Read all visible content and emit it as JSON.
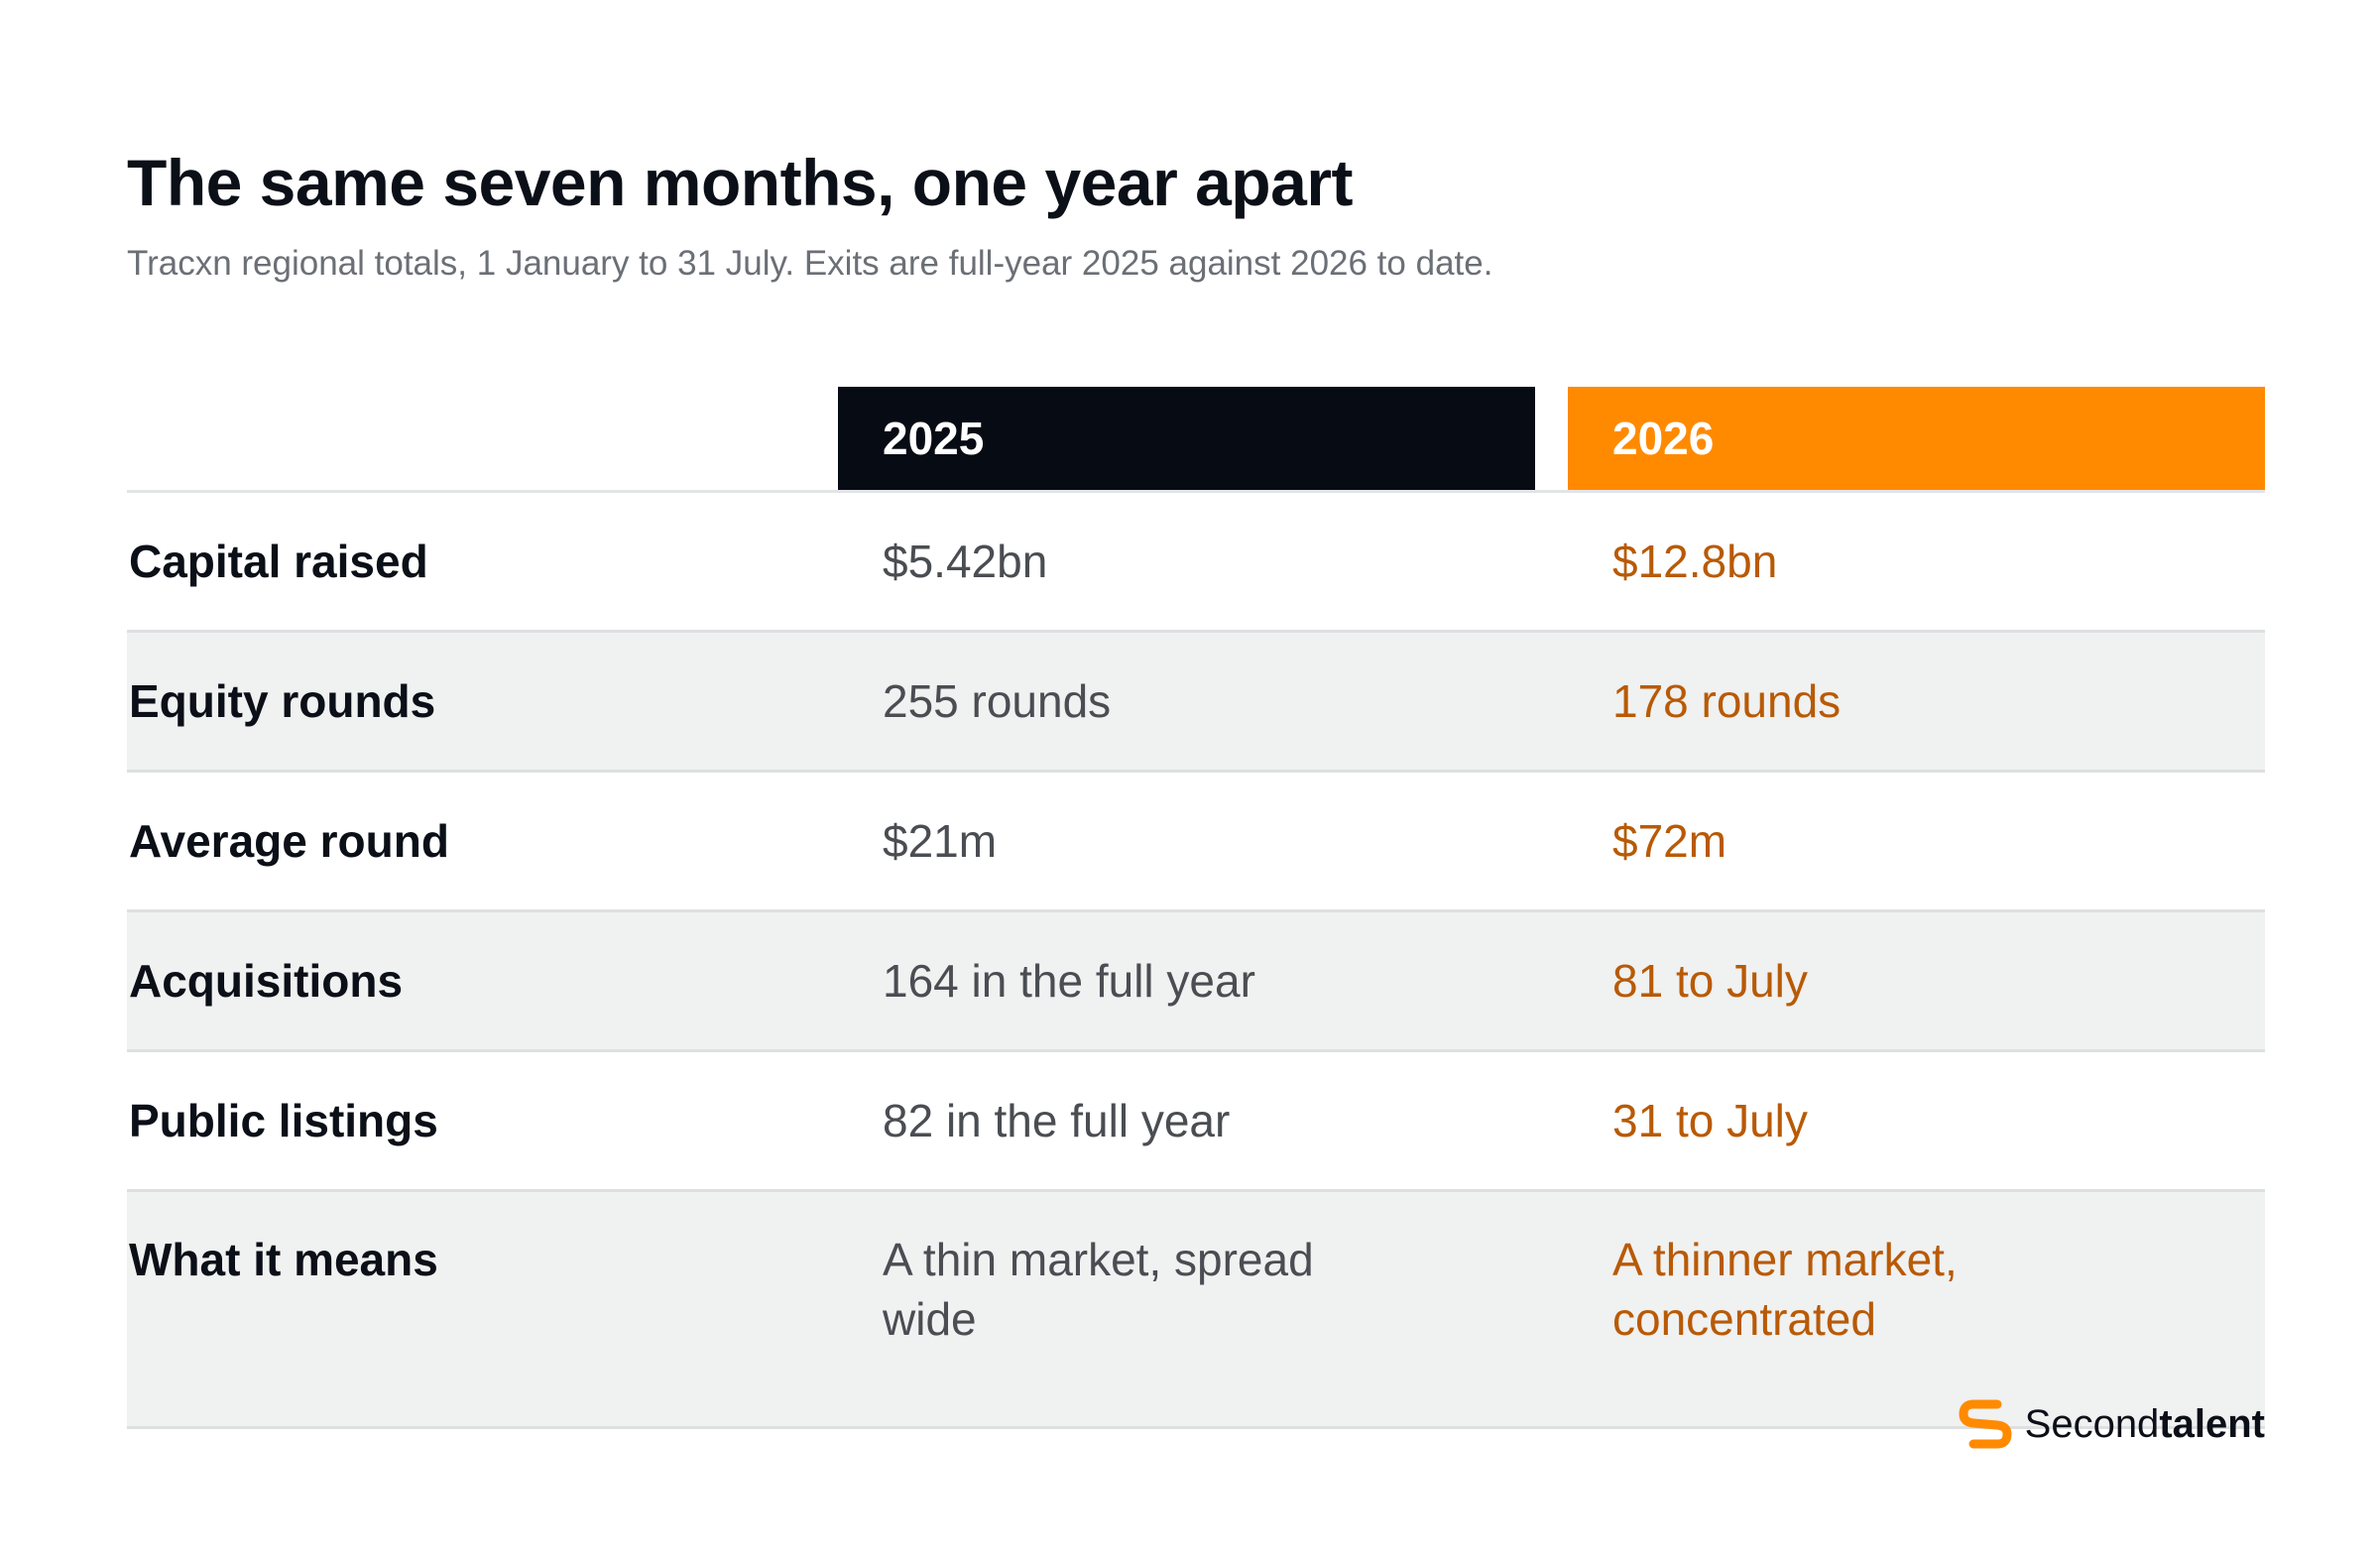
{
  "header": {
    "title": "The same seven months, one year apart",
    "subtitle": "Tracxn regional totals, 1 January to 31 July. Exits are full-year 2025 against 2026 to date."
  },
  "table": {
    "columns": [
      "2025",
      "2026"
    ],
    "rows": [
      {
        "label": "Capital raised",
        "v2025": "$5.42bn",
        "v2026": "$12.8bn"
      },
      {
        "label": "Equity rounds",
        "v2025": "255 rounds",
        "v2026": "178 rounds"
      },
      {
        "label": "Average round",
        "v2025": "$21m",
        "v2026": "$72m"
      },
      {
        "label": "Acquisitions",
        "v2025": "164 in the full year",
        "v2026": "81 to July"
      },
      {
        "label": "Public listings",
        "v2025": "82 in the full year",
        "v2026": "31 to July"
      },
      {
        "label": "What it means",
        "v2025": "A thin market, spread wide",
        "v2026": "A thinner market, concentrated"
      }
    ]
  },
  "brand": {
    "name_part1": "Second",
    "name_part2": "talent",
    "icon": "secondtalent-logo-icon",
    "color": "#ff8a00"
  },
  "colors": {
    "header_2025": "#070b14",
    "header_2026": "#ff8a00",
    "text_2026": "#b85a06",
    "row_shade": "#f0f1f1"
  }
}
